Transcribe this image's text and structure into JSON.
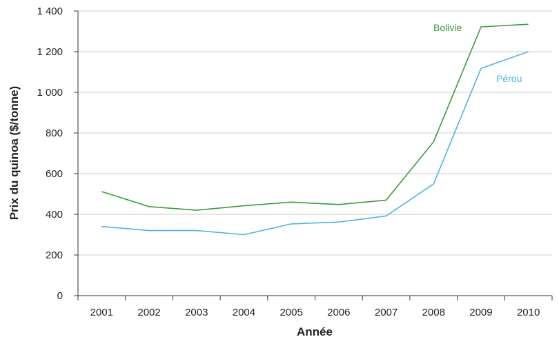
{
  "chart_data": {
    "type": "line",
    "xlabel": "Année",
    "ylabel": "Prix du quinoa ($/tonne)",
    "ylim": [
      0,
      1400
    ],
    "yticks": [
      0,
      200,
      400,
      600,
      800,
      1000,
      1200,
      1400
    ],
    "ytick_labels": [
      "0",
      "200",
      "400",
      "600",
      "800",
      "1 000",
      "1 200",
      "1 400"
    ],
    "categories": [
      "2001",
      "2002",
      "2003",
      "2004",
      "2005",
      "2006",
      "2007",
      "2008",
      "2009",
      "2010"
    ],
    "grid": "horizontal",
    "series": [
      {
        "name": "Bolivie",
        "color": "#3a9a3a",
        "values": [
          512,
          438,
          420,
          442,
          460,
          448,
          470,
          757,
          1322,
          1335
        ]
      },
      {
        "name": "Pérou",
        "color": "#4fb3e0",
        "values": [
          340,
          320,
          320,
          300,
          353,
          362,
          392,
          550,
          1118,
          1200
        ]
      }
    ]
  }
}
